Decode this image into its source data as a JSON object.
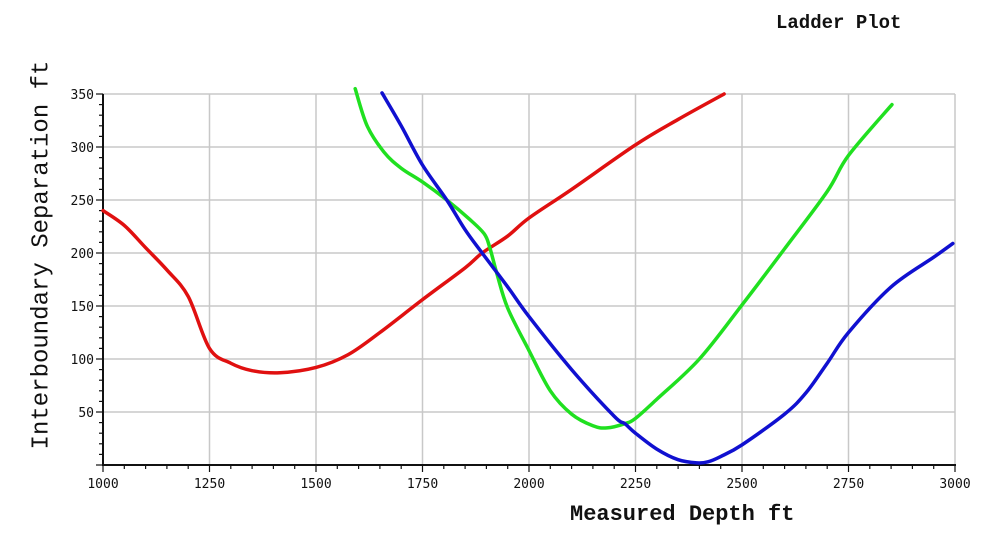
{
  "chart_data": {
    "type": "line",
    "title": "Ladder Plot",
    "xlabel": "Measured Depth ft",
    "ylabel": "Interboundary Separation ft",
    "xlim": [
      1000,
      3000
    ],
    "ylim": [
      0,
      350
    ],
    "grid": true,
    "legend": null,
    "x_ticks": [
      1000,
      1250,
      1500,
      1750,
      2000,
      2250,
      2500,
      2750,
      3000
    ],
    "y_ticks": [
      50,
      100,
      150,
      200,
      250,
      300,
      350
    ],
    "x_minor_step": 50,
    "y_minor_step": 10,
    "series": [
      {
        "name": "red",
        "color": "#e01010",
        "points": [
          [
            1000,
            240
          ],
          [
            1050,
            226
          ],
          [
            1100,
            205
          ],
          [
            1150,
            184
          ],
          [
            1200,
            159
          ],
          [
            1250,
            110
          ],
          [
            1300,
            96
          ],
          [
            1350,
            89
          ],
          [
            1415,
            87
          ],
          [
            1500,
            92
          ],
          [
            1575,
            104
          ],
          [
            1650,
            125
          ],
          [
            1750,
            156
          ],
          [
            1850,
            186
          ],
          [
            1890,
            200
          ],
          [
            1950,
            216
          ],
          [
            2000,
            233
          ],
          [
            2100,
            260
          ],
          [
            2250,
            302
          ],
          [
            2350,
            326
          ],
          [
            2458,
            350
          ]
        ]
      },
      {
        "name": "green",
        "color": "#20e020",
        "points": [
          [
            1592,
            355
          ],
          [
            1620,
            320
          ],
          [
            1660,
            295
          ],
          [
            1700,
            280
          ],
          [
            1750,
            267
          ],
          [
            1807,
            250
          ],
          [
            1860,
            232
          ],
          [
            1895,
            218
          ],
          [
            1908,
            205
          ],
          [
            1925,
            180
          ],
          [
            1950,
            148
          ],
          [
            2000,
            108
          ],
          [
            2050,
            70
          ],
          [
            2100,
            48
          ],
          [
            2150,
            37
          ],
          [
            2183,
            35
          ],
          [
            2225,
            39
          ],
          [
            2250,
            44
          ],
          [
            2300,
            62
          ],
          [
            2400,
            100
          ],
          [
            2500,
            151
          ],
          [
            2600,
            204
          ],
          [
            2700,
            258
          ],
          [
            2750,
            292
          ],
          [
            2852,
            340
          ]
        ]
      },
      {
        "name": "blue",
        "color": "#1010d0",
        "points": [
          [
            1655,
            351
          ],
          [
            1700,
            320
          ],
          [
            1750,
            283
          ],
          [
            1807,
            250
          ],
          [
            1850,
            222
          ],
          [
            1890,
            200
          ],
          [
            1950,
            168
          ],
          [
            2000,
            140
          ],
          [
            2100,
            90
          ],
          [
            2200,
            46
          ],
          [
            2225,
            39
          ],
          [
            2250,
            30
          ],
          [
            2300,
            15
          ],
          [
            2350,
            5
          ],
          [
            2394,
            2
          ],
          [
            2420,
            3
          ],
          [
            2450,
            8
          ],
          [
            2500,
            19
          ],
          [
            2600,
            48
          ],
          [
            2650,
            68
          ],
          [
            2700,
            96
          ],
          [
            2750,
            125
          ],
          [
            2850,
            168
          ],
          [
            2950,
            196
          ],
          [
            2995,
            209
          ]
        ]
      }
    ]
  },
  "labels": {
    "title": "Ladder Plot",
    "xlabel": "Measured Depth ft",
    "ylabel": "Interboundary Separation ft"
  },
  "colors": {
    "grid": "#c8c8c8",
    "axis": "#111111"
  }
}
